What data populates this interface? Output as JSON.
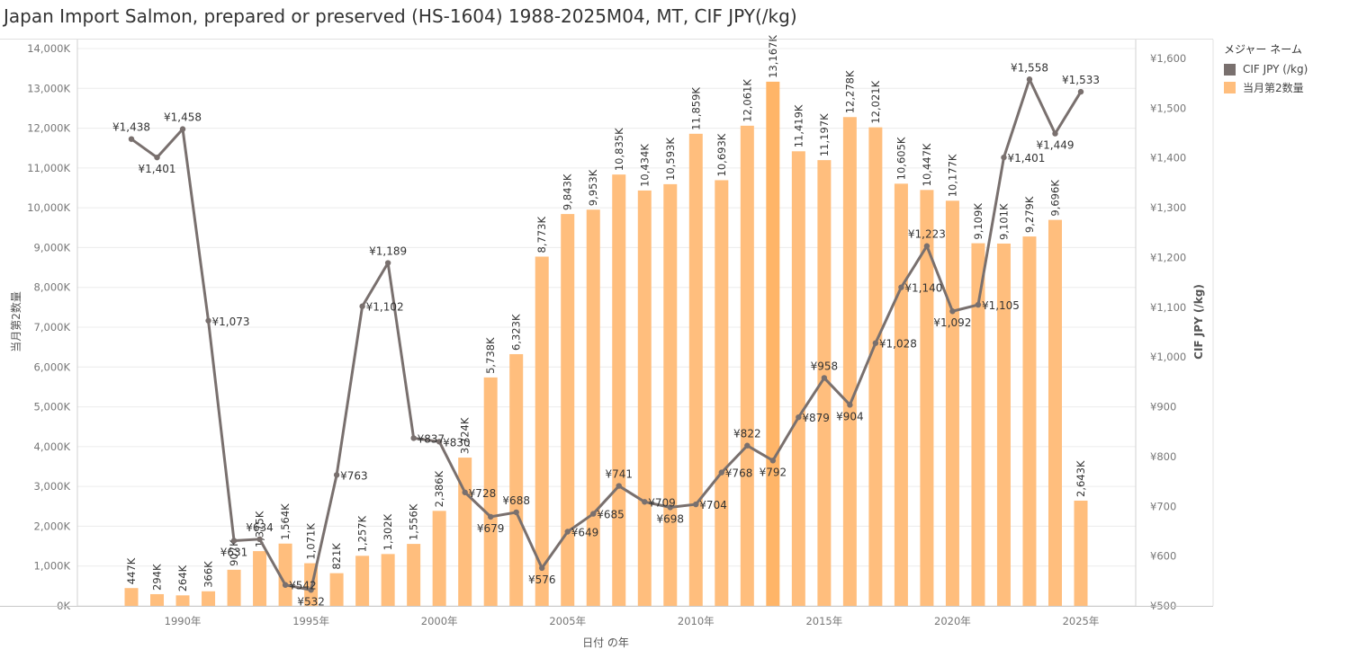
{
  "title": "Japan Import Salmon, prepared or preserved (HS-1604) 1988-2025M04, MT, CIF JPY(/kg)",
  "legend": {
    "title": "メジャー ネーム",
    "items": [
      {
        "label": "CIF JPY (/kg)",
        "color": "#79706e"
      },
      {
        "label": "当月第2数量",
        "color": "#ffbe7d"
      }
    ]
  },
  "chart_data": {
    "type": "bar",
    "title": "Japan Import Salmon, prepared or preserved (HS-1604) 1988-2025M04, MT, CIF JPY(/kg)",
    "xlabel": "日付 の年",
    "ylabel_left": "当月第2数量",
    "ylabel_right": "CIF JPY (/kg)",
    "ylim_left": [
      0,
      14000
    ],
    "ylim_right": [
      500,
      1650
    ],
    "left_ticks": [
      0,
      1000,
      2000,
      3000,
      4000,
      5000,
      6000,
      7000,
      8000,
      9000,
      10000,
      11000,
      12000,
      13000,
      14000
    ],
    "left_tick_labels": [
      "0K",
      "1,000K",
      "2,000K",
      "3,000K",
      "4,000K",
      "5,000K",
      "6,000K",
      "7,000K",
      "8,000K",
      "9,000K",
      "10,000K",
      "11,000K",
      "12,000K",
      "13,000K",
      "14,000K"
    ],
    "right_ticks": [
      500,
      600,
      700,
      800,
      900,
      1000,
      1100,
      1200,
      1300,
      1400,
      1500,
      1600
    ],
    "right_tick_labels": [
      "¥500",
      "¥600",
      "¥700",
      "¥800",
      "¥900",
      "¥1,000",
      "¥1,100",
      "¥1,200",
      "¥1,300",
      "¥1,400",
      "¥1,500",
      "¥1,600"
    ],
    "x_ticks": [
      1990,
      1995,
      2000,
      2005,
      2010,
      2015,
      2020,
      2025
    ],
    "x_tick_labels": [
      "1990年",
      "1995年",
      "2000年",
      "2005年",
      "2010年",
      "2015年",
      "2020年",
      "2025年"
    ],
    "grid": true,
    "legend_position": "top-right",
    "categories": [
      1988,
      1989,
      1990,
      1991,
      1992,
      1993,
      1994,
      1995,
      1996,
      1997,
      1998,
      1999,
      2000,
      2001,
      2002,
      2003,
      2004,
      2005,
      2006,
      2007,
      2008,
      2009,
      2010,
      2011,
      2012,
      2013,
      2014,
      2015,
      2016,
      2017,
      2018,
      2019,
      2020,
      2021,
      2022,
      2023,
      2024,
      2025
    ],
    "series": [
      {
        "name": "当月第2数量",
        "type": "bar",
        "axis": "left",
        "color": "#ffbe7d",
        "values": [
          447,
          294,
          264,
          366,
          907,
          1375,
          1564,
          1071,
          821,
          1257,
          1302,
          1556,
          2386,
          3724,
          5738,
          6323,
          8773,
          9843,
          9953,
          10835,
          10434,
          10593,
          11859,
          10693,
          12061,
          13167,
          11419,
          11197,
          12278,
          12021,
          10605,
          10447,
          10177,
          9109,
          9101,
          9279,
          9696,
          2643
        ],
        "labels": [
          "447K",
          "294K",
          "264K",
          "366K",
          "907K",
          "1,375K",
          "1,564K",
          "1,071K",
          "821K",
          "1,257K",
          "1,302K",
          "1,556K",
          "2,386K",
          "3,724K",
          "5,738K",
          "6,323K",
          "8,773K",
          "9,843K",
          "9,953K",
          "10,835K",
          "10,434K",
          "10,593K",
          "11,859K",
          "10,693K",
          "12,061K",
          "13,167K",
          "11,419K",
          "11,197K",
          "12,278K",
          "12,021K",
          "10,605K",
          "10,447K",
          "10,177K",
          "9,109K",
          "9,101K",
          "9,279K",
          "9,696K",
          "2,643K"
        ]
      },
      {
        "name": "CIF JPY (/kg)",
        "type": "line",
        "axis": "right",
        "color": "#79706e",
        "values": [
          1438,
          1401,
          1458,
          1073,
          631,
          634,
          542,
          532,
          763,
          1102,
          1189,
          837,
          830,
          728,
          679,
          688,
          576,
          649,
          685,
          741,
          709,
          698,
          704,
          768,
          822,
          792,
          879,
          958,
          904,
          1028,
          1140,
          1223,
          1092,
          1105,
          1401,
          1558,
          1449,
          1533
        ],
        "labels": [
          "¥1,438",
          "¥1,401",
          "¥1,458",
          "¥1,073",
          "¥631",
          "¥634",
          "¥542",
          "¥532",
          "¥763",
          "¥1,102",
          "¥1,189",
          "¥837",
          "¥830",
          "¥728",
          "¥679",
          "¥688",
          "¥576",
          "¥649",
          "¥685",
          "¥741",
          "¥709",
          "¥698",
          "¥704",
          "¥768",
          "¥822",
          "¥792",
          "¥879",
          "¥958",
          "¥904",
          "¥1,028",
          "¥1,140",
          "¥1,223",
          "¥1,092",
          "¥1,105",
          "¥1,401",
          "¥1,558",
          "¥1,449",
          "¥1,533"
        ]
      }
    ]
  }
}
